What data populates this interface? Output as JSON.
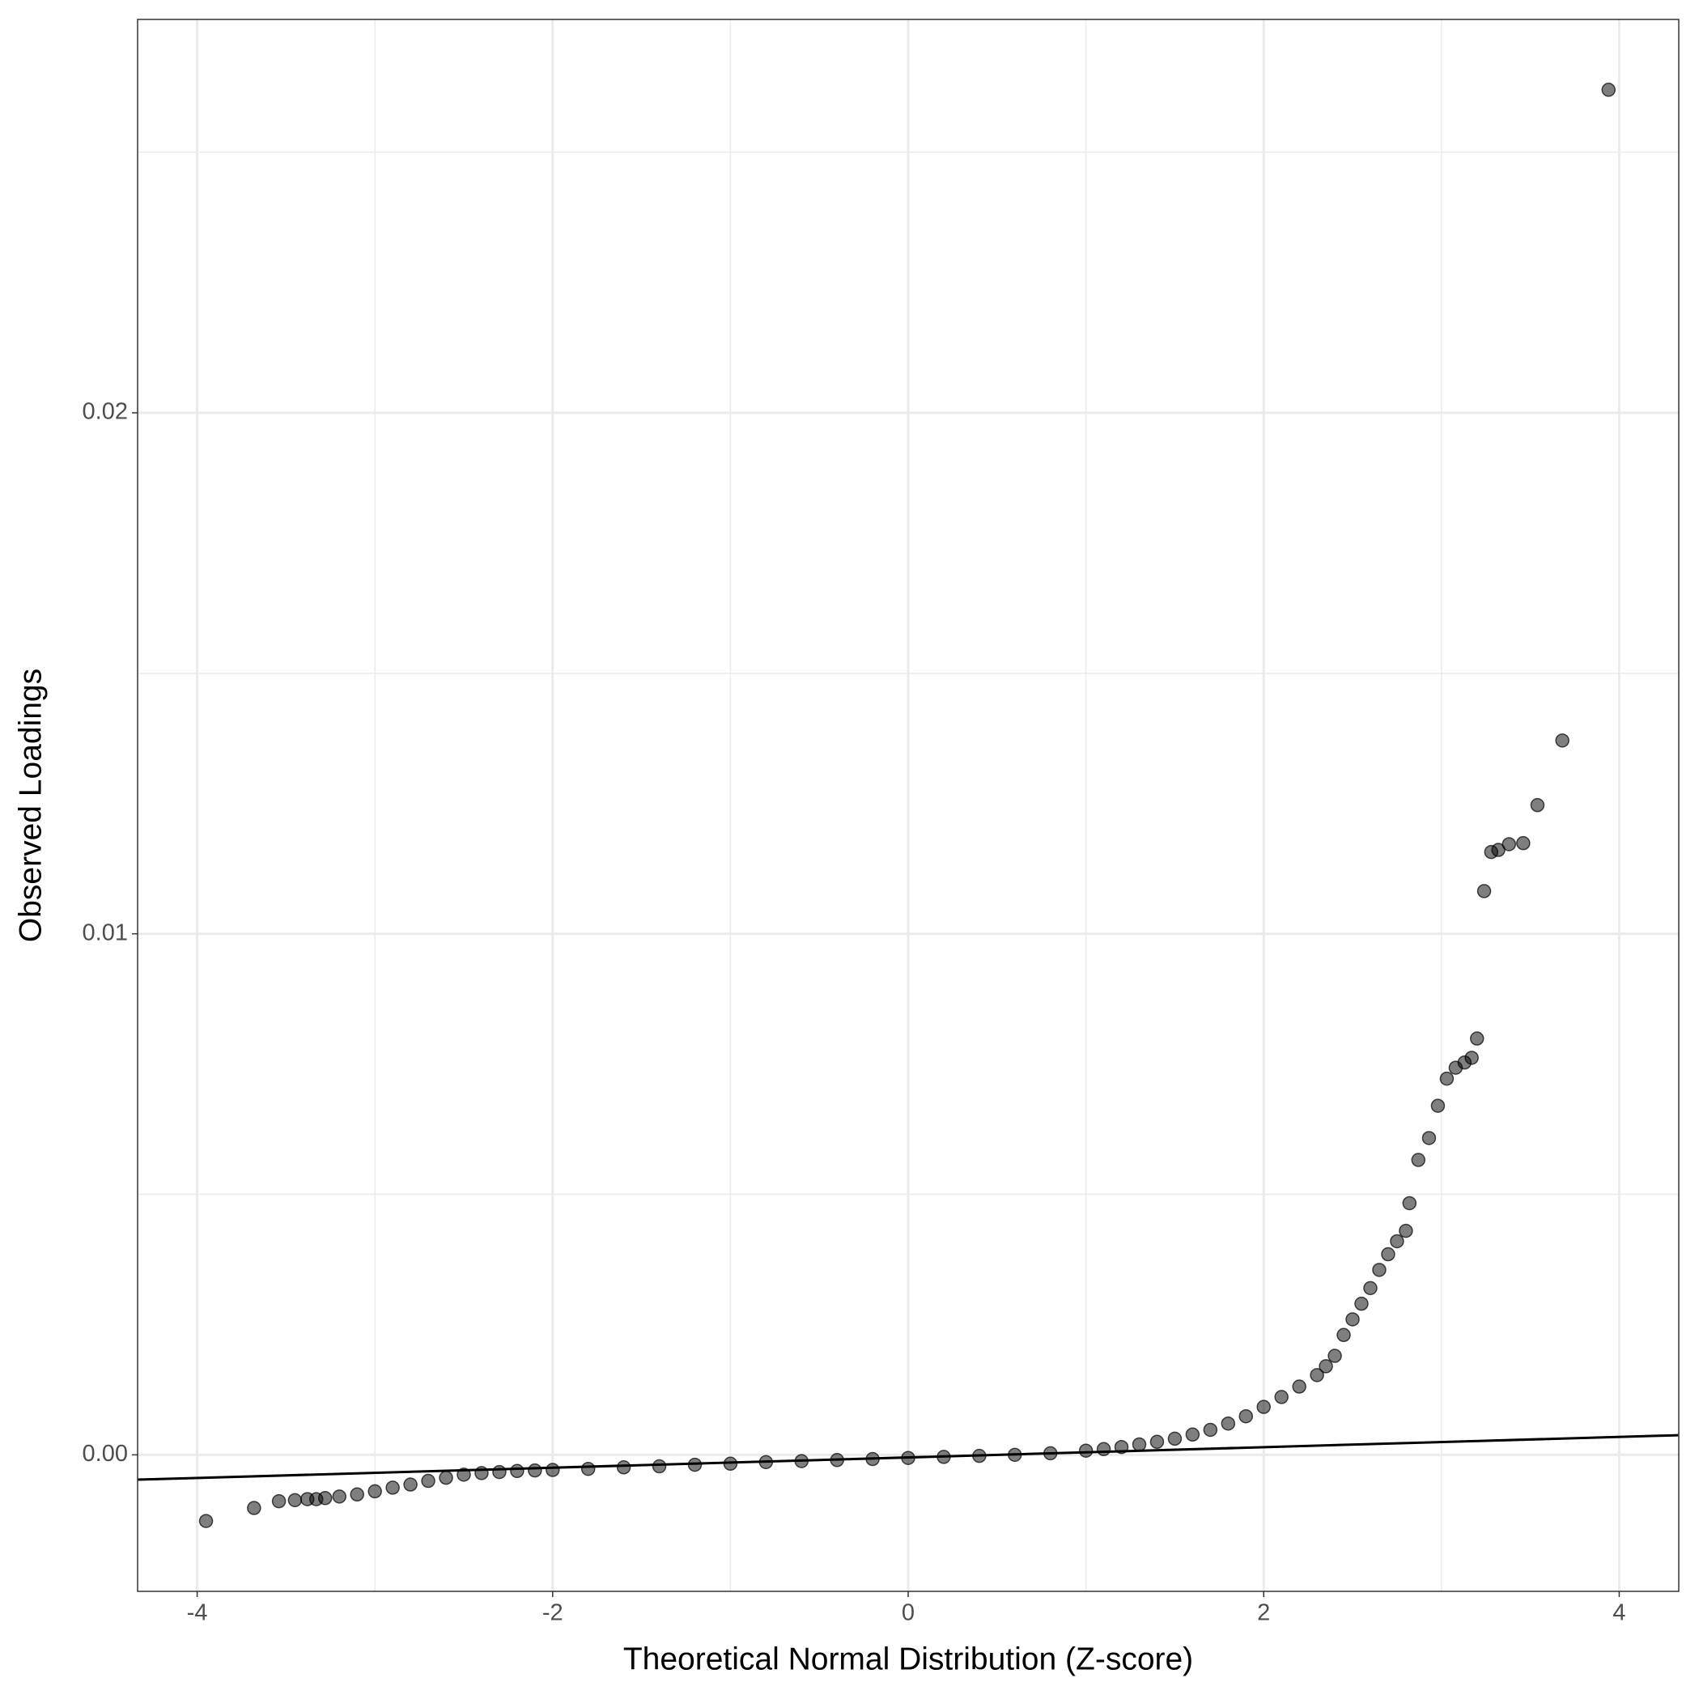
{
  "chart_data": {
    "type": "scatter",
    "x_label": "Theoretical Normal Distribution (Z-score)",
    "y_label": "Observed Loadings",
    "xlim": [
      -4.335,
      4.335
    ],
    "ylim": [
      -0.00262,
      0.02755
    ],
    "xticks": [
      -4,
      -2,
      0,
      2,
      4
    ],
    "yticks": [
      {
        "value": 0,
        "label": "0.00"
      },
      {
        "value": 0.01,
        "label": "0.01"
      },
      {
        "value": 0.02,
        "label": "0.02"
      }
    ],
    "minor_xticks": [
      -3,
      -1,
      1,
      3
    ],
    "minor_yticks": [
      0.005,
      0.015,
      0.025
    ],
    "grid": true,
    "color": "#000000",
    "reference_line": {
      "intercept": -5e-05,
      "slope": 9.85e-05
    },
    "x": [
      -3.95,
      -3.68,
      -3.54,
      -3.45,
      -3.38,
      -3.33,
      -3.28,
      -3.2,
      -3.1,
      -3.0,
      -2.9,
      -2.8,
      -2.7,
      -2.6,
      -2.5,
      -2.4,
      -2.3,
      -2.2,
      -2.1,
      -2.0,
      -1.8,
      -1.6,
      -1.4,
      -1.2,
      -1.0,
      -0.8,
      -0.6,
      -0.4,
      -0.2,
      0.0,
      0.2,
      0.4,
      0.6,
      0.8,
      1.0,
      1.1,
      1.2,
      1.3,
      1.4,
      1.5,
      1.6,
      1.7,
      1.8,
      1.9,
      2.0,
      2.1,
      2.2,
      2.3,
      2.35,
      2.4,
      2.45,
      2.5,
      2.55,
      2.6,
      2.65,
      2.7,
      2.75,
      2.8,
      2.82,
      2.87,
      2.93,
      2.98,
      3.03,
      3.08,
      3.13,
      3.17,
      3.2,
      3.24,
      3.28,
      3.32,
      3.38,
      3.46,
      3.54,
      3.68,
      3.94
    ],
    "y": [
      -0.00127,
      -0.00102,
      -0.00089,
      -0.00087,
      -0.00085,
      -0.00085,
      -0.00083,
      -0.0008,
      -0.00076,
      -0.0007,
      -0.00063,
      -0.00057,
      -0.0005,
      -0.00044,
      -0.00038,
      -0.00035,
      -0.00033,
      -0.00031,
      -0.0003,
      -0.00029,
      -0.00027,
      -0.00024,
      -0.00022,
      -0.00019,
      -0.00017,
      -0.00014,
      -0.00012,
      -0.0001,
      -8e-05,
      -6e-05,
      -4e-05,
      -2e-05,
      0.0,
      3e-05,
      8e-05,
      0.00011,
      0.00015,
      0.0002,
      0.00025,
      0.00031,
      0.00039,
      0.00048,
      0.0006,
      0.00074,
      0.00092,
      0.00111,
      0.00131,
      0.00153,
      0.0017,
      0.0019,
      0.0023,
      0.0026,
      0.0029,
      0.0032,
      0.00355,
      0.00385,
      0.0041,
      0.0043,
      0.00483,
      0.00566,
      0.00608,
      0.0067,
      0.00722,
      0.00743,
      0.00753,
      0.00762,
      0.00799,
      0.01082,
      0.01157,
      0.01161,
      0.01172,
      0.01174,
      0.01247,
      0.01371,
      0.0262
    ]
  }
}
